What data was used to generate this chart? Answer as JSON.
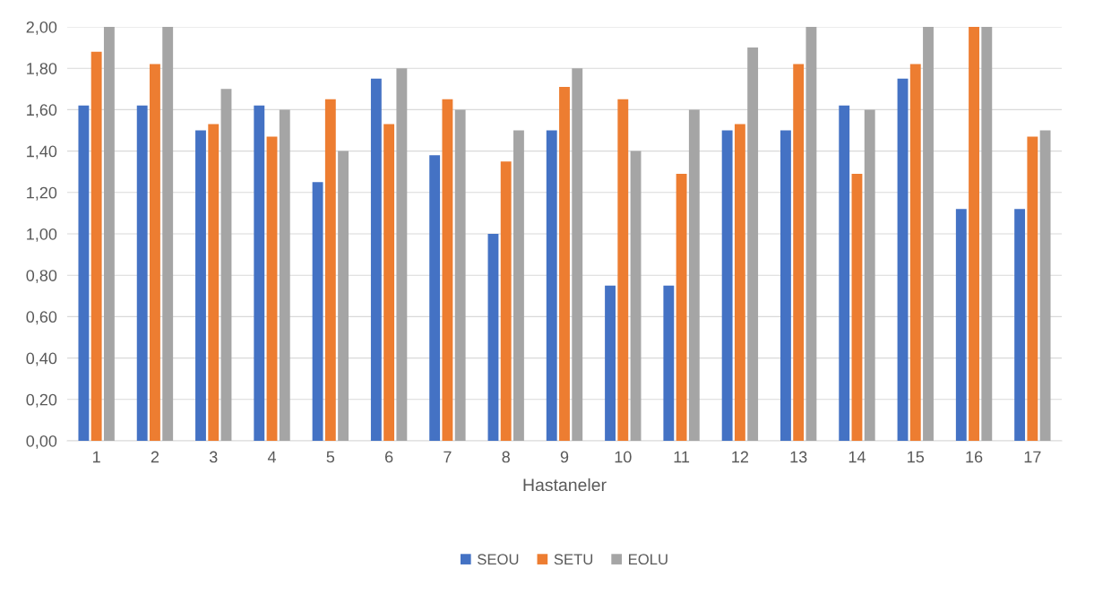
{
  "chart_data": {
    "type": "bar",
    "xlabel": "Hastaneler",
    "categories": [
      "1",
      "2",
      "3",
      "4",
      "5",
      "6",
      "7",
      "8",
      "9",
      "10",
      "11",
      "12",
      "13",
      "14",
      "15",
      "16",
      "17"
    ],
    "series": [
      {
        "name": "SEOU",
        "color": "#4472c4",
        "values": [
          1.62,
          1.62,
          1.5,
          1.62,
          1.25,
          1.75,
          1.38,
          1.0,
          1.5,
          0.75,
          0.75,
          1.5,
          1.5,
          1.62,
          1.75,
          1.12,
          1.12
        ]
      },
      {
        "name": "SETU",
        "color": "#ed7d31",
        "values": [
          1.88,
          1.82,
          1.53,
          1.47,
          1.65,
          1.53,
          1.65,
          1.35,
          1.71,
          1.65,
          1.29,
          1.53,
          1.82,
          1.29,
          1.82,
          2.0,
          1.47
        ]
      },
      {
        "name": "EOLU",
        "color": "#a5a5a5",
        "values": [
          2.0,
          2.0,
          1.7,
          1.6,
          1.4,
          1.8,
          1.6,
          1.5,
          1.8,
          1.4,
          1.6,
          1.9,
          2.0,
          1.6,
          2.0,
          2.0,
          1.5
        ]
      }
    ],
    "ylim": [
      0,
      2
    ],
    "yticks": [
      {
        "value": 0,
        "label": "0,00"
      },
      {
        "value": 0.2,
        "label": "0,20"
      },
      {
        "value": 0.4,
        "label": "0,40"
      },
      {
        "value": 0.6,
        "label": "0,60"
      },
      {
        "value": 0.8,
        "label": "0,80"
      },
      {
        "value": 1.0,
        "label": "1,00"
      },
      {
        "value": 1.2,
        "label": "1,20"
      },
      {
        "value": 1.4,
        "label": "1,40"
      },
      {
        "value": 1.6,
        "label": "1,60"
      },
      {
        "value": 1.8,
        "label": "1,80"
      },
      {
        "value": 2.0,
        "label": "2,00"
      }
    ],
    "grid": "y",
    "legend": "bottom"
  }
}
